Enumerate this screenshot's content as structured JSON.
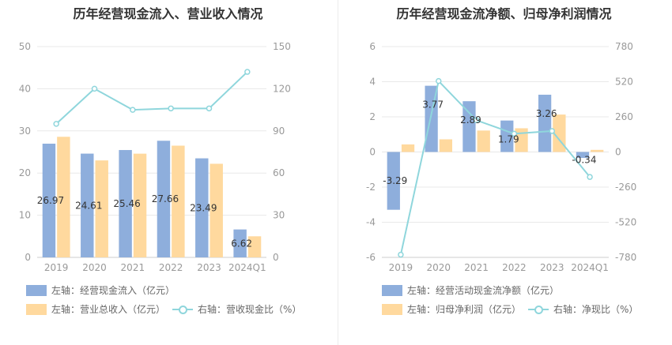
{
  "colors": {
    "bar1": "#8eaedc",
    "bar2": "#ffd99e",
    "line": "#8fd6dc",
    "grid": "#e8e8e8",
    "axis": "#999999"
  },
  "chart_data": [
    {
      "type": "bar",
      "title": "历年经营现金流入、营业收入情况",
      "categories": [
        "2019",
        "2020",
        "2021",
        "2022",
        "2023",
        "2024Q1"
      ],
      "series": [
        {
          "name": "左轴：经营现金流入（亿元）",
          "axis": "left",
          "type": "bar",
          "values": [
            26.97,
            24.61,
            25.46,
            27.66,
            23.49,
            6.62
          ],
          "labels": [
            "26.97",
            "24.61",
            "25.46",
            "27.66",
            "23.49",
            "6.62"
          ]
        },
        {
          "name": "左轴：营业总收入（亿元）",
          "axis": "left",
          "type": "bar",
          "values": [
            28.6,
            23.0,
            24.6,
            26.5,
            22.2,
            5.0
          ]
        },
        {
          "name": "右轴：营收现金比（%）",
          "axis": "right",
          "type": "line",
          "values": [
            95,
            120,
            105,
            106,
            106,
            132
          ]
        }
      ],
      "y_left": {
        "min": 0,
        "max": 50,
        "ticks": [
          "0",
          "10",
          "20",
          "30",
          "40",
          "50"
        ]
      },
      "y_right": {
        "min": 0,
        "max": 150,
        "ticks": [
          "0",
          "30",
          "60",
          "90",
          "120",
          "150"
        ]
      },
      "grid": true,
      "legend_position": "bottom"
    },
    {
      "type": "bar",
      "title": "历年经营现金流净额、归母净利润情况",
      "categories": [
        "2019",
        "2020",
        "2021",
        "2022",
        "2023",
        "2024Q1"
      ],
      "series": [
        {
          "name": "左轴：经营活动现金流净额（亿元）",
          "axis": "left",
          "type": "bar",
          "values": [
            -3.29,
            3.77,
            2.89,
            1.79,
            3.26,
            -0.34
          ],
          "labels": [
            "-3.29",
            "3.77",
            "2.89",
            "1.79",
            "3.26",
            "-0.34"
          ]
        },
        {
          "name": "左轴：归母净利润（亿元）",
          "axis": "left",
          "type": "bar",
          "values": [
            0.43,
            0.72,
            1.22,
            1.35,
            2.13,
            0.12
          ]
        },
        {
          "name": "右轴：净现比（%）",
          "axis": "right",
          "type": "line",
          "values": [
            -760,
            525,
            235,
            135,
            155,
            -185
          ]
        }
      ],
      "y_left": {
        "min": -6,
        "max": 6,
        "ticks": [
          "-6",
          "-4",
          "-2",
          "0",
          "2",
          "4",
          "6"
        ]
      },
      "y_right": {
        "min": -780,
        "max": 780,
        "ticks": [
          "-780",
          "-520",
          "-260",
          "0",
          "260",
          "520",
          "780"
        ]
      },
      "grid": true,
      "legend_position": "bottom"
    }
  ]
}
